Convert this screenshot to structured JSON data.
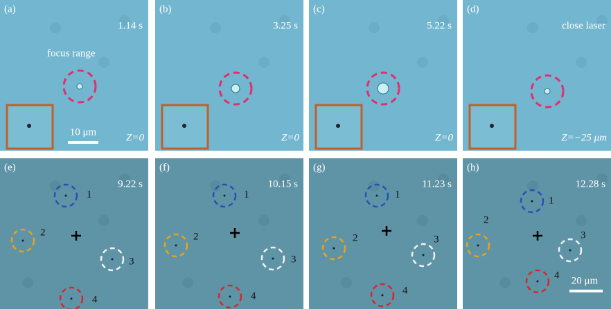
{
  "panels": [
    {
      "label": "(a)",
      "time": "1.14 s",
      "note": "focus range",
      "scale": "10 μm",
      "z": "Z=0"
    },
    {
      "label": "(b)",
      "time": "3.25 s",
      "z": "Z=0"
    },
    {
      "label": "(c)",
      "time": "5.22 s",
      "z": "Z=0"
    },
    {
      "label": "(d)",
      "time": "close laser",
      "z": "Z=−25 μm"
    },
    {
      "label": "(e)",
      "time": "9.22 s",
      "markers": [
        "1",
        "2",
        "3",
        "4"
      ]
    },
    {
      "label": "(f)",
      "time": "10.15 s",
      "markers": [
        "1",
        "2",
        "3",
        "4"
      ]
    },
    {
      "label": "(g)",
      "time": "11.23 s",
      "markers": [
        "1",
        "2",
        "3",
        "4"
      ]
    },
    {
      "label": "(h)",
      "time": "12.28 s",
      "markers": [
        "1",
        "2",
        "3",
        "4"
      ],
      "scale": "20 μm"
    }
  ]
}
